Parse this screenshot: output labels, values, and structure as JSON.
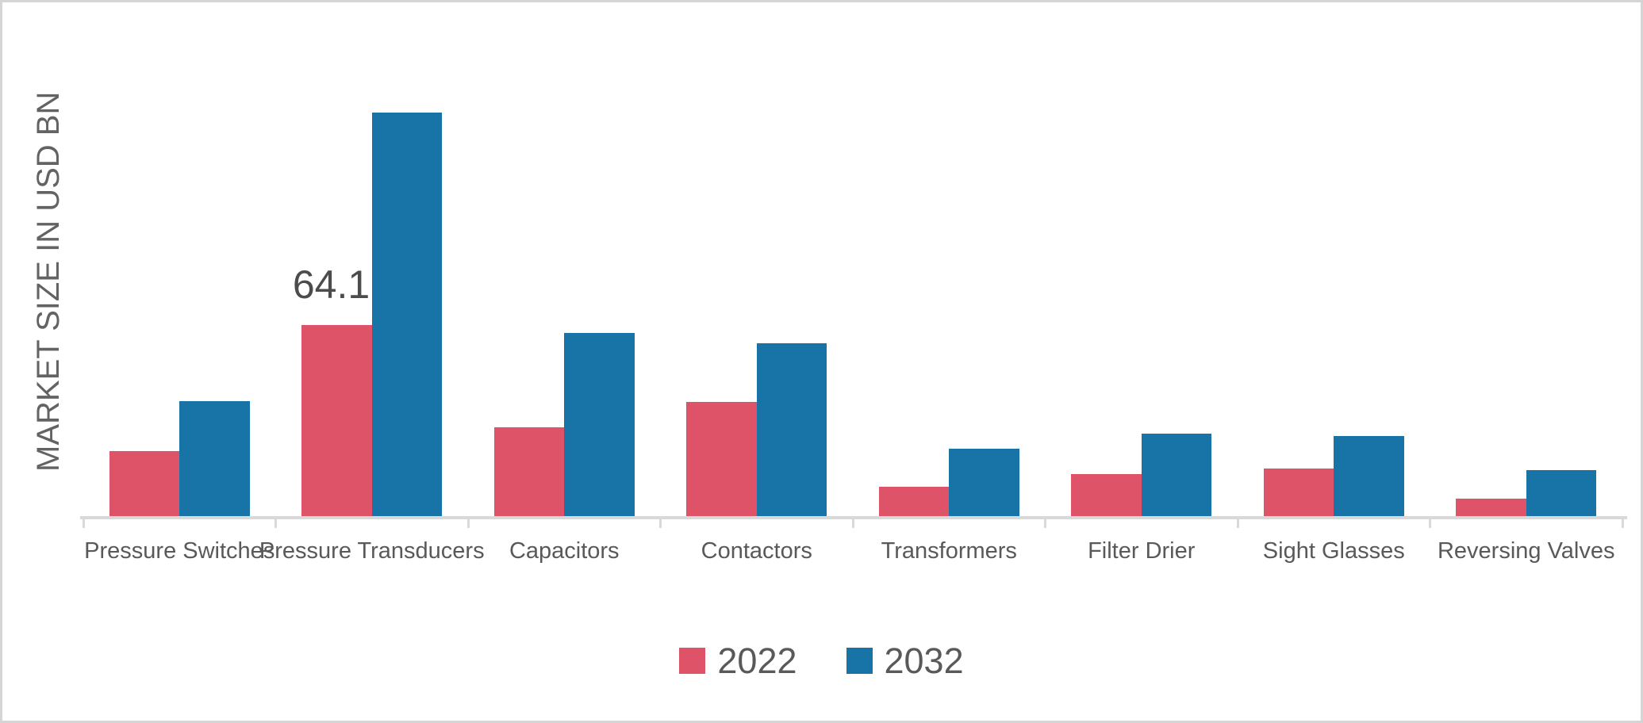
{
  "figure": {
    "background": "#ffffff",
    "border_color": "#d5d5d5"
  },
  "chart_data": {
    "type": "bar",
    "title": "",
    "xlabel": "",
    "ylabel": "MARKET SIZE IN USD BN",
    "categories": [
      "Pressure Switches",
      "Pressure Transducers",
      "Capacitors",
      "Contactors",
      "Transformers",
      "Filter Drier",
      "Sight Glasses",
      "Reversing Valves"
    ],
    "series": [
      {
        "name": "2022",
        "color": "#de5367",
        "values": [
          21.9,
          64.1,
          29.8,
          38.3,
          9.8,
          14.1,
          16.0,
          5.9
        ]
      },
      {
        "name": "2032",
        "color": "#1874a6",
        "values": [
          38.6,
          135.4,
          61.5,
          58.0,
          22.6,
          27.7,
          26.9,
          15.4
        ]
      }
    ],
    "data_labels": [
      {
        "category_index": 1,
        "series_index": 0,
        "text": "64.1"
      }
    ],
    "ylim": [
      0,
      140
    ],
    "grid": false,
    "y_axis_ticks_visible": false,
    "legend_position": "bottom",
    "axis_color": "#d9d9d9",
    "category_label_color": "#595959",
    "data_label_color": "#4c4c4c"
  }
}
